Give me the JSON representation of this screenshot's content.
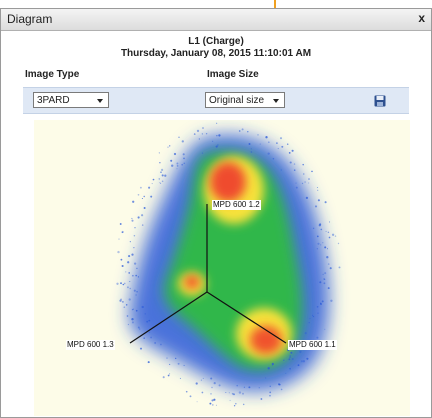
{
  "window": {
    "title": "Diagram",
    "close_label": "x"
  },
  "header": {
    "series": "L1 (Charge)",
    "date": "Thursday, January 08, 2015 11:10:01 AM"
  },
  "controls": {
    "image_type_label": "Image Type",
    "image_type_value": "3PARD",
    "image_size_label": "Image Size",
    "image_size_value": "Original size"
  },
  "icons": {
    "close": "close-icon",
    "save": "floppy-disk-icon",
    "dropdown": "chevron-down-icon"
  },
  "plot": {
    "axes": [
      {
        "label": "MPD 600 1.2"
      },
      {
        "label": "MPD 600 1.3"
      },
      {
        "label": "MPD 600 1.1"
      }
    ]
  },
  "colors": {
    "accent": "#f0a020",
    "controls_bar": "#dfe8f5",
    "plot_background": "#fdfce8",
    "density_low": "#2a5ad8",
    "density_mid": "#2fbf3a",
    "density_high": "#f7e23a",
    "density_peak": "#ee3b2b"
  }
}
